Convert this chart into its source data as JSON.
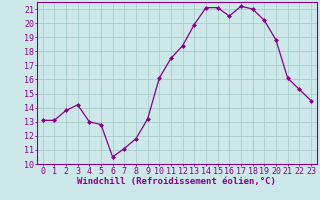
{
  "x": [
    0,
    1,
    2,
    3,
    4,
    5,
    6,
    7,
    8,
    9,
    10,
    11,
    12,
    13,
    14,
    15,
    16,
    17,
    18,
    19,
    20,
    21,
    22,
    23
  ],
  "y": [
    13.1,
    13.1,
    13.8,
    14.2,
    13.0,
    12.8,
    10.5,
    11.1,
    11.8,
    13.2,
    16.1,
    17.5,
    18.4,
    19.9,
    21.1,
    21.1,
    20.5,
    21.2,
    21.0,
    20.2,
    18.8,
    16.1,
    15.3,
    14.5
  ],
  "line_color": "#8B008B",
  "marker": "D",
  "marker_size": 2.0,
  "bg_color": "#cce8e8",
  "grid_color": "#aacccc",
  "xlabel": "Windchill (Refroidissement éolien,°C)",
  "xlim": [
    -0.5,
    23.5
  ],
  "ylim": [
    10,
    21.5
  ],
  "yticks": [
    10,
    11,
    12,
    13,
    14,
    15,
    16,
    17,
    18,
    19,
    20,
    21
  ],
  "xticks": [
    0,
    1,
    2,
    3,
    4,
    5,
    6,
    7,
    8,
    9,
    10,
    11,
    12,
    13,
    14,
    15,
    16,
    17,
    18,
    19,
    20,
    21,
    22,
    23
  ],
  "xlabel_fontsize": 6.5,
  "tick_fontsize": 6.0,
  "spine_color": "#8B008B",
  "line_width": 0.9
}
